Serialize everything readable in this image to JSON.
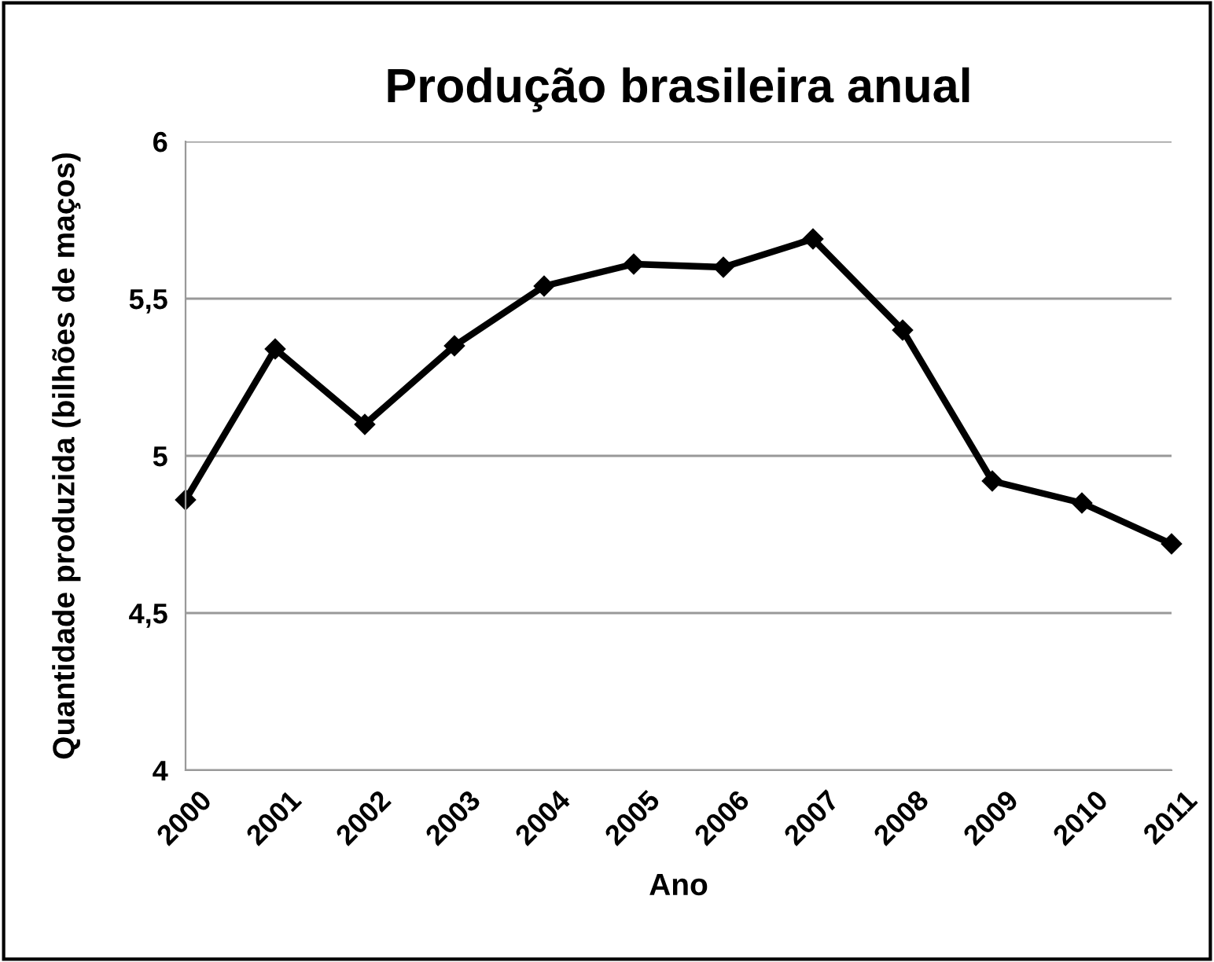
{
  "chart_data": {
    "type": "line",
    "title": "Produção brasileira anual",
    "xlabel": "Ano",
    "ylabel": "Quantidade produzida (bilhões de maços)",
    "categories": [
      "2000",
      "2001",
      "2002",
      "2003",
      "2004",
      "2005",
      "2006",
      "2007",
      "2008",
      "2009",
      "2010",
      "2011"
    ],
    "series": [
      {
        "color": "#000000",
        "values": [
          4.86,
          5.34,
          5.1,
          5.35,
          5.54,
          5.61,
          5.6,
          5.69,
          5.4,
          4.92,
          4.85,
          4.72
        ]
      }
    ],
    "ylim": [
      4,
      6
    ],
    "yticks": [
      {
        "value": 4,
        "label": "4"
      },
      {
        "value": 4.5,
        "label": "4,5"
      },
      {
        "value": 5,
        "label": "5"
      },
      {
        "value": 5.5,
        "label": "5,5"
      },
      {
        "value": 6,
        "label": "6"
      }
    ],
    "grid": "y",
    "legend": false,
    "marker": "diamond",
    "line_style": "solid"
  }
}
